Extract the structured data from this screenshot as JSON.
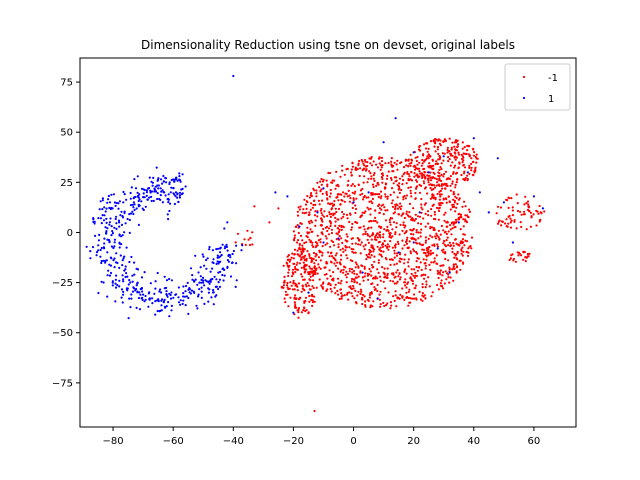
{
  "chart_data": {
    "type": "scatter",
    "title": "Dimensionality Reduction using tsne on devset, original labels",
    "xlabel": "",
    "ylabel": "",
    "xlim": [
      -91,
      74
    ],
    "ylim": [
      -97,
      87
    ],
    "xticks": [
      -80,
      -60,
      -40,
      -20,
      0,
      20,
      40,
      60
    ],
    "yticks": [
      -75,
      -50,
      -25,
      0,
      25,
      50,
      75
    ],
    "grid": false,
    "legend_position": "top-right",
    "series": [
      {
        "name": "-1",
        "color": "#ff0000",
        "clusters": [
          {
            "cx": 10,
            "cy": 0,
            "rx": 30,
            "ry": 38,
            "n": 1500
          },
          {
            "cx": 30,
            "cy": 35,
            "rx": 12,
            "ry": 12,
            "n": 250
          },
          {
            "cx": -18,
            "cy": -25,
            "rx": 6,
            "ry": 18,
            "n": 180
          },
          {
            "cx": 55,
            "cy": 10,
            "rx": 9,
            "ry": 9,
            "n": 70
          },
          {
            "cx": 55,
            "cy": -12,
            "rx": 4,
            "ry": 3,
            "n": 25
          },
          {
            "cx": -36,
            "cy": -3,
            "rx": 4,
            "ry": 4,
            "n": 12
          }
        ],
        "points": [
          [
            -13,
            -89
          ],
          [
            -33,
            13
          ],
          [
            -28,
            5
          ],
          [
            -25,
            12
          ]
        ]
      },
      {
        "name": "1",
        "color": "#0000ff",
        "arc": {
          "cx": -63,
          "cy": -6,
          "rx": 19,
          "ry": 28,
          "start_deg": 70,
          "end_deg": 360,
          "thickness": 3.5,
          "n": 550
        },
        "points": [
          [
            -40,
            78
          ],
          [
            -65,
            22
          ],
          [
            -63,
            20
          ],
          [
            -42,
            5
          ],
          [
            -43,
            2
          ],
          [
            -26,
            20
          ],
          [
            -22,
            18
          ],
          [
            -10,
            22
          ],
          [
            0,
            15
          ],
          [
            5,
            20
          ],
          [
            10,
            45
          ],
          [
            14,
            57
          ],
          [
            20,
            40
          ],
          [
            25,
            30
          ],
          [
            30,
            38
          ],
          [
            38,
            30
          ],
          [
            40,
            47
          ],
          [
            42,
            20
          ],
          [
            45,
            10
          ],
          [
            48,
            37
          ],
          [
            -5,
            -3
          ],
          [
            3,
            -20
          ],
          [
            8,
            -33
          ],
          [
            15,
            -10
          ],
          [
            20,
            -5
          ],
          [
            28,
            -8
          ],
          [
            32,
            -20
          ],
          [
            35,
            5
          ],
          [
            -10,
            -5
          ],
          [
            -15,
            -30
          ],
          [
            -20,
            -40
          ],
          [
            -18,
            3
          ],
          [
            -12,
            10
          ],
          [
            22,
            10
          ],
          [
            50,
            15
          ],
          [
            53,
            -5
          ],
          [
            60,
            18
          ],
          [
            63,
            12
          ],
          [
            -45,
            -20
          ],
          [
            -50,
            -25
          ],
          [
            -46,
            -32
          ]
        ]
      }
    ]
  }
}
